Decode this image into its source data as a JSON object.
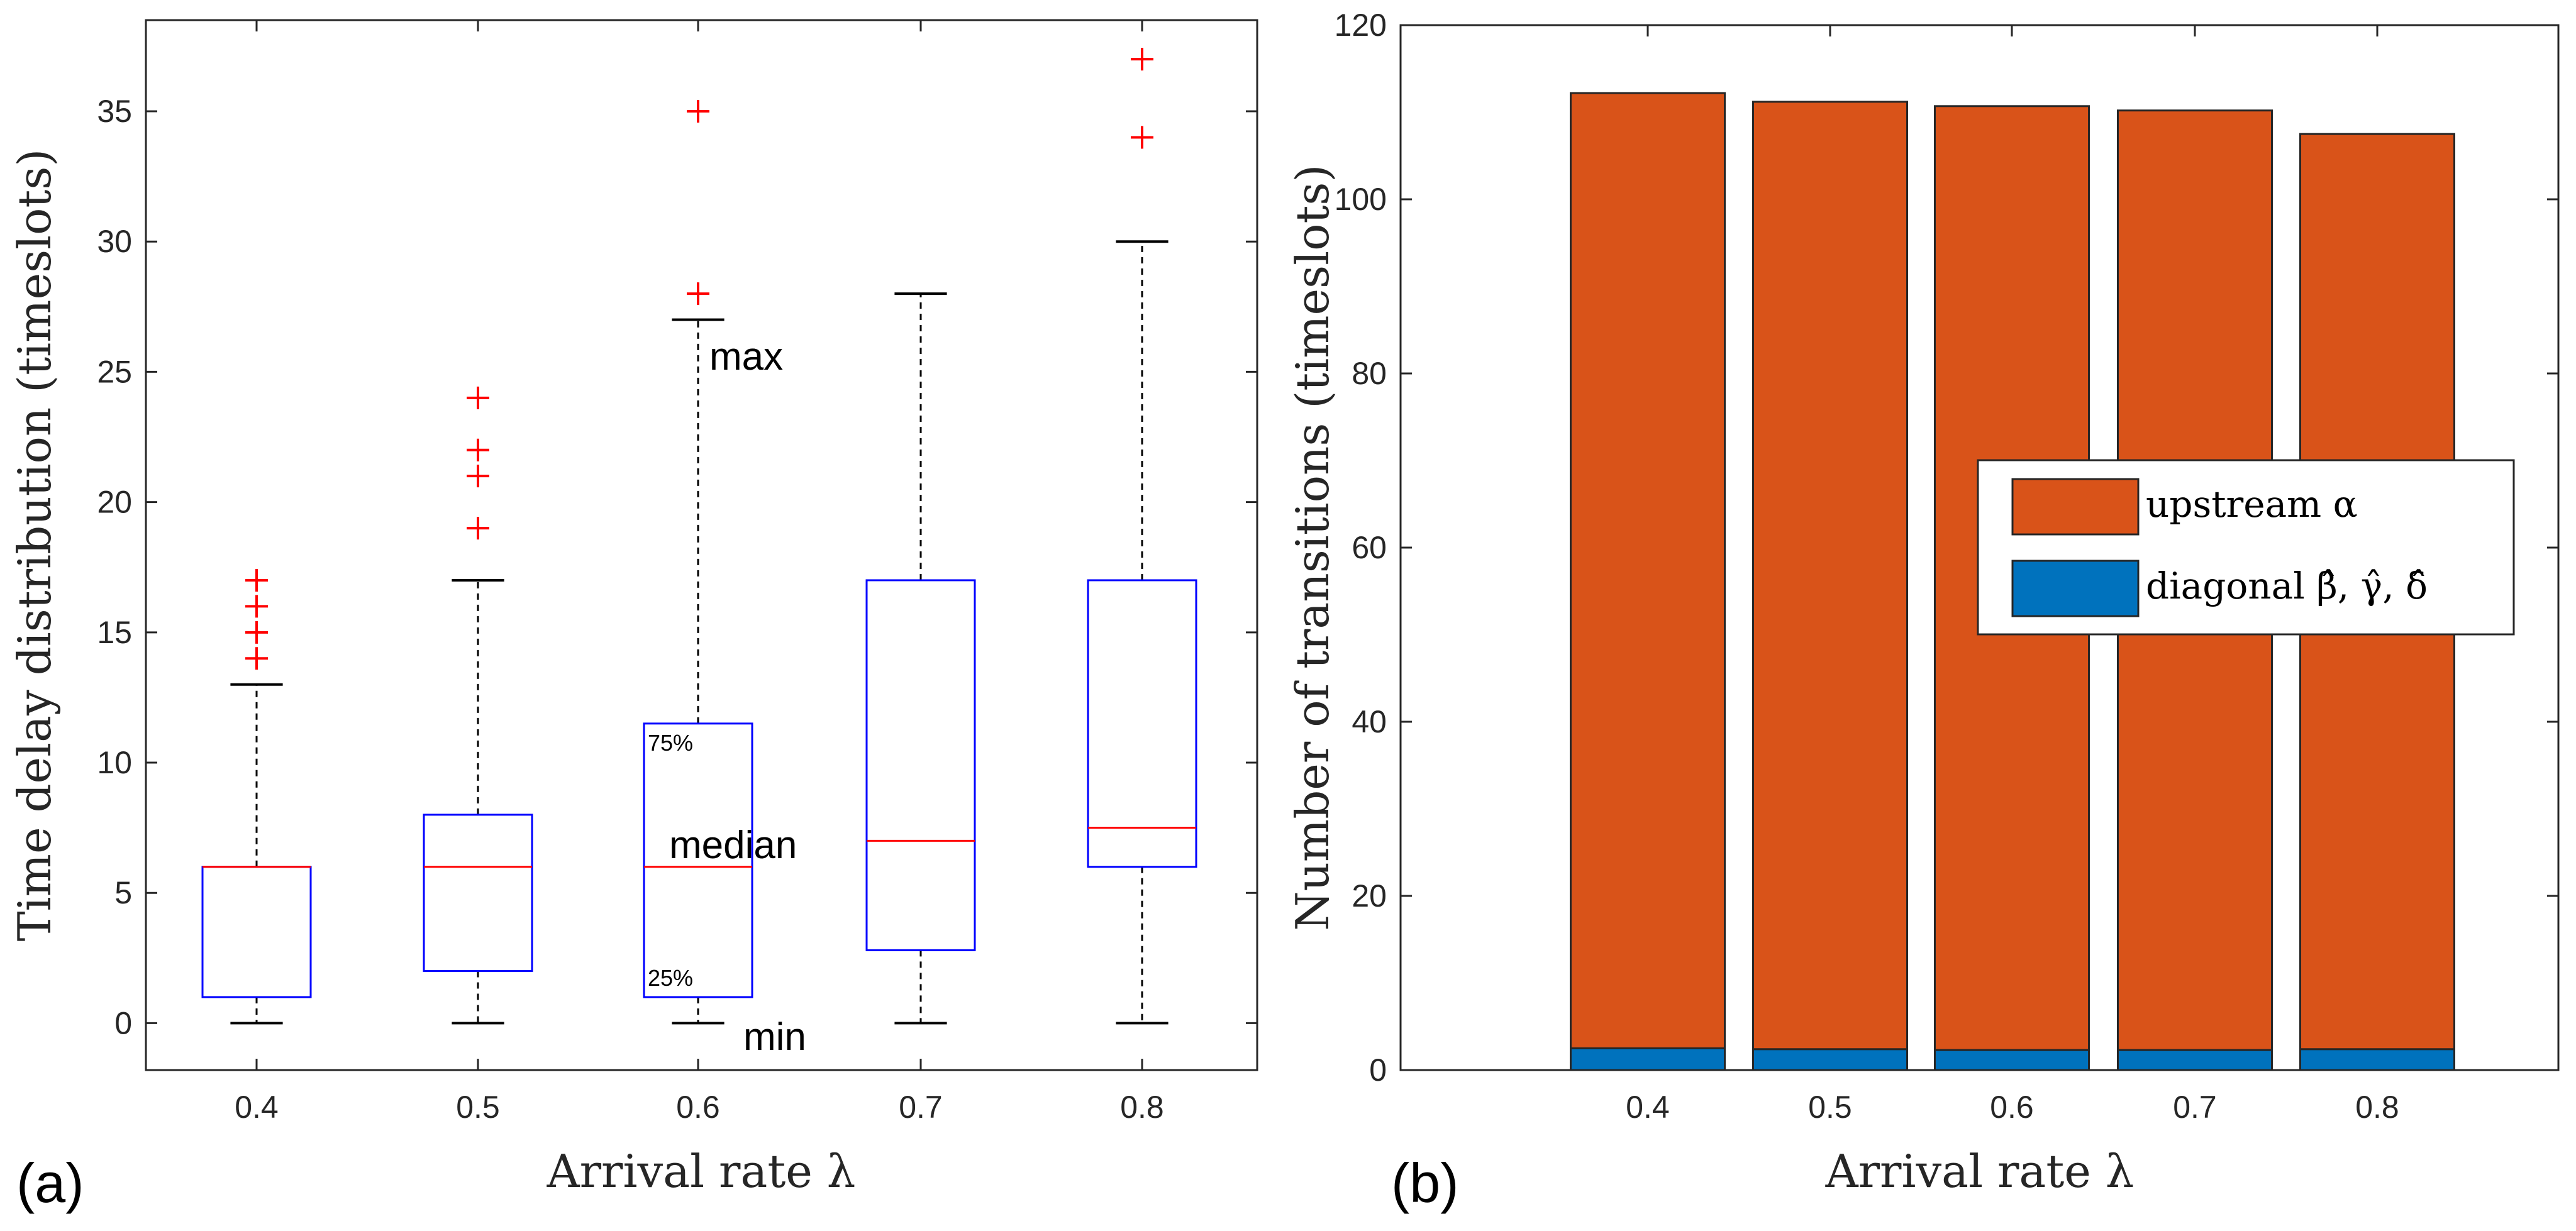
{
  "chart_data": [
    {
      "type": "box",
      "panel_label": "(a)",
      "xlabel": "Arrival rate λ",
      "ylabel": "Time delay distribution (timeslots)",
      "categories": [
        "0.4",
        "0.5",
        "0.6",
        "0.7",
        "0.8"
      ],
      "ylim": [
        -1.8,
        38.5
      ],
      "yticks": [
        0,
        5,
        10,
        15,
        20,
        25,
        30,
        35
      ],
      "boxes": [
        {
          "min": 0,
          "q1": 1,
          "median": 6,
          "q3": 6,
          "max": 13,
          "outliers": [
            14,
            15,
            16,
            17
          ]
        },
        {
          "min": 0,
          "q1": 2,
          "median": 6,
          "q3": 8,
          "max": 17,
          "outliers": [
            19,
            21,
            22,
            24
          ]
        },
        {
          "min": 0,
          "q1": 1,
          "median": 6,
          "q3": 11.5,
          "max": 27,
          "outliers": [
            28,
            35
          ]
        },
        {
          "min": 0,
          "q1": 2.8,
          "median": 7,
          "q3": 17,
          "max": 28,
          "outliers": []
        },
        {
          "min": 0,
          "q1": 6,
          "median": 7.5,
          "q3": 17,
          "max": 30,
          "outliers": [
            34,
            37
          ]
        }
      ],
      "annotations": {
        "max": "max",
        "median": "median",
        "min": "min",
        "p75": "75%",
        "p25": "25%"
      }
    },
    {
      "type": "stacked_bar",
      "panel_label": "(b)",
      "xlabel": "Arrival rate λ",
      "ylabel": "Number of transitions (timeslots)",
      "categories": [
        "0.4",
        "0.5",
        "0.6",
        "0.7",
        "0.8"
      ],
      "ylim": [
        0,
        120
      ],
      "yticks": [
        0,
        20,
        40,
        60,
        80,
        100,
        120
      ],
      "series": [
        {
          "name": "diagonal β̂, γ̂, δ̂",
          "color": "#0072bd",
          "values": [
            2.5,
            2.4,
            2.3,
            2.3,
            2.4
          ]
        },
        {
          "name": "upstream α",
          "color": "#d95319",
          "values": [
            109.7,
            108.8,
            108.4,
            107.9,
            105.1
          ]
        }
      ],
      "legend": {
        "upstream": "upstream α",
        "diagonal": "diagonal β̂, γ̂, δ̂"
      }
    }
  ]
}
